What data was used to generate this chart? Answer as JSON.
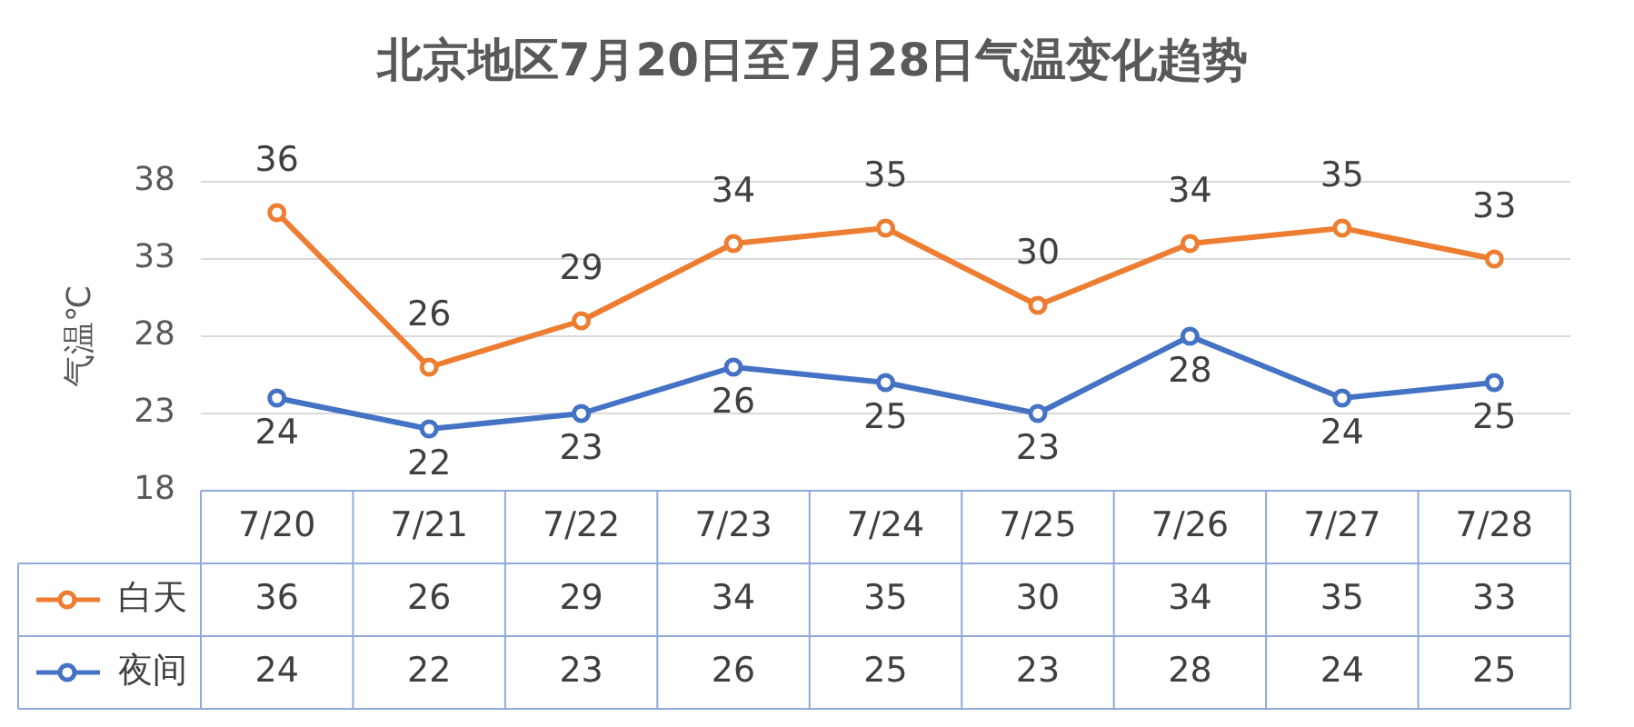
{
  "chart_data": {
    "type": "line",
    "title": "北京地区7月20日至7月28日气温变化趋势",
    "ylabel": "气温℃",
    "categories": [
      "7/20",
      "7/21",
      "7/22",
      "7/23",
      "7/24",
      "7/25",
      "7/26",
      "7/27",
      "7/28"
    ],
    "series": [
      {
        "name": "白天",
        "color": "#ed7d31",
        "values": [
          36,
          26,
          29,
          34,
          35,
          30,
          34,
          35,
          33
        ]
      },
      {
        "name": "夜间",
        "color": "#4472c4",
        "values": [
          24,
          22,
          23,
          26,
          25,
          23,
          28,
          24,
          25
        ]
      }
    ],
    "annotations": [
      {
        "text": "36",
        "x": "7/20",
        "y": 36
      },
      {
        "text": "26",
        "x": "7/21",
        "y": 26
      },
      {
        "text": "29",
        "x": "7/22",
        "y": 29
      },
      {
        "text": "34",
        "x": "7/23",
        "y": 34
      },
      {
        "text": "35",
        "x": "7/24",
        "y": 35
      },
      {
        "text": "30",
        "x": "7/25",
        "y": 30
      },
      {
        "text": "34",
        "x": "7/26",
        "y": 34
      },
      {
        "text": "35",
        "x": "7/27",
        "y": 35
      },
      {
        "text": "33",
        "x": "7/28",
        "y": 33
      },
      {
        "text": "24",
        "x": "7/20",
        "y": 24
      },
      {
        "text": "22",
        "x": "7/21",
        "y": 22
      },
      {
        "text": "23",
        "x": "7/22",
        "y": 23
      },
      {
        "text": "26",
        "x": "7/23",
        "y": 26
      },
      {
        "text": "25",
        "x": "7/24",
        "y": 25
      },
      {
        "text": "23",
        "x": "7/25",
        "y": 23
      },
      {
        "text": "28",
        "x": "7/26",
        "y": 28
      },
      {
        "text": "24",
        "x": "7/27",
        "y": 24
      },
      {
        "text": "25",
        "x": "7/28",
        "y": 25
      }
    ],
    "ylim": [
      18,
      38
    ],
    "yticks": [
      18,
      23,
      28,
      33,
      38
    ],
    "grid": "y",
    "legend": "bottom",
    "marker": "circle",
    "line_style": "solid",
    "data_labels": true
  }
}
